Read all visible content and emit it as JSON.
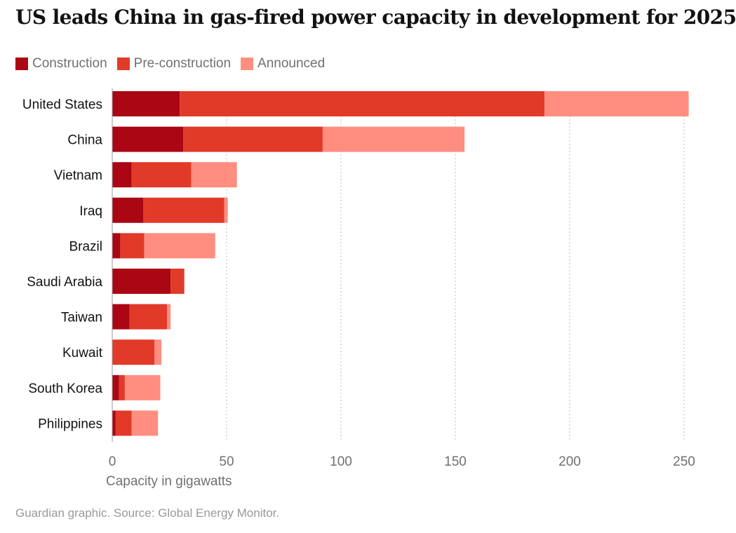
{
  "title": "US leads China in gas-fired power capacity in development for 2025",
  "source": "Guardian graphic. Source: Global Energy Monitor.",
  "legend": [
    {
      "label": "Construction",
      "color": "#ab0613"
    },
    {
      "label": "Pre-construction",
      "color": "#e23a29"
    },
    {
      "label": "Announced",
      "color": "#ff8e80"
    }
  ],
  "chart_data": {
    "type": "bar",
    "orientation": "horizontal",
    "stacked": true,
    "categories": [
      "United States",
      "China",
      "Vietnam",
      "Iraq",
      "Brazil",
      "Saudi Arabia",
      "Taiwan",
      "Kuwait",
      "South Korea",
      "Philippines"
    ],
    "series": [
      {
        "name": "Construction",
        "color": "#ab0613",
        "values": [
          29.5,
          31,
          8.5,
          13.5,
          3.5,
          25.5,
          7.5,
          0,
          3,
          1.5
        ]
      },
      {
        "name": "Pre-construction",
        "color": "#e23a29",
        "values": [
          159.5,
          61,
          26,
          35.5,
          10.5,
          6,
          16.5,
          18.5,
          2.5,
          7
        ]
      },
      {
        "name": "Announced",
        "color": "#ff8e80",
        "values": [
          63,
          62,
          20,
          1.5,
          31,
          0,
          1.5,
          3,
          15.5,
          11.5
        ]
      }
    ],
    "xlabel": "Capacity in gigawatts",
    "xlim": [
      0,
      250
    ],
    "xticks": [
      0,
      50,
      100,
      150,
      200,
      250
    ],
    "grid": "vertical dotted",
    "legend_position": "top-left"
  }
}
